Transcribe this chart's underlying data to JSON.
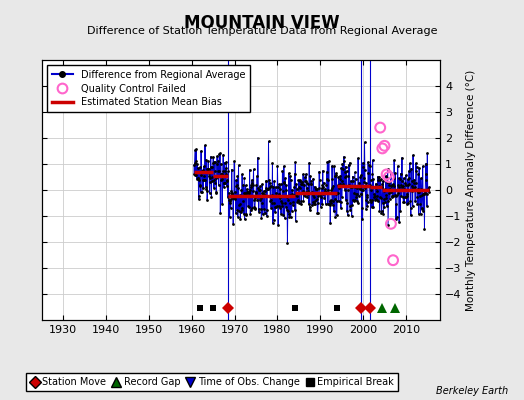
{
  "title": "MOUNTAIN VIEW",
  "subtitle": "Difference of Station Temperature Data from Regional Average",
  "ylabel": "Monthly Temperature Anomaly Difference (°C)",
  "xlabel_credit": "Berkeley Earth",
  "xlim": [
    1925,
    2018
  ],
  "ylim": [
    -5,
    5
  ],
  "yticks": [
    -4,
    -3,
    -2,
    -1,
    0,
    1,
    2,
    3,
    4
  ],
  "xticks": [
    1930,
    1940,
    1950,
    1960,
    1970,
    1980,
    1990,
    2000,
    2010
  ],
  "bg_color": "#e8e8e8",
  "plot_bg_color": "#ffffff",
  "grid_color": "#cccccc",
  "data_start_year": 1960.5,
  "data_end_year": 2015.5,
  "seed": 42,
  "station_moves": [
    1968.5,
    1999.5,
    2001.5
  ],
  "empirical_breaks": [
    1962.0,
    1965.0,
    1984.0,
    1994.0
  ],
  "record_gaps": [
    2004.5,
    2007.5
  ],
  "time_obs_changes": [],
  "bias_segments": [
    {
      "x_start": 1960.5,
      "x_end": 1965.0,
      "bias": 0.7
    },
    {
      "x_start": 1965.0,
      "x_end": 1968.5,
      "bias": 0.55
    },
    {
      "x_start": 1968.5,
      "x_end": 1984.0,
      "bias": -0.25
    },
    {
      "x_start": 1984.0,
      "x_end": 1994.0,
      "bias": -0.1
    },
    {
      "x_start": 1994.0,
      "x_end": 1999.5,
      "bias": 0.15
    },
    {
      "x_start": 1999.5,
      "x_end": 2001.5,
      "bias": 0.15
    },
    {
      "x_start": 2001.5,
      "x_end": 2004.5,
      "bias": 0.1
    },
    {
      "x_start": 2004.5,
      "x_end": 2007.5,
      "bias": 0.0
    },
    {
      "x_start": 2007.5,
      "x_end": 2015.5,
      "bias": 0.0
    }
  ],
  "qc_failed_years": [
    2004.0,
    2004.5,
    2005.0,
    2005.5,
    2006.0,
    2006.5,
    2007.0
  ],
  "qc_failed_values": [
    2.4,
    1.6,
    1.7,
    0.6,
    0.5,
    -1.3,
    -2.7
  ],
  "line_color": "#0000cc",
  "dot_color": "#000000",
  "bias_color": "#cc0000",
  "qc_color": "#ff66cc",
  "station_move_color": "#cc0000",
  "record_gap_color": "#006600",
  "time_obs_color": "#0000cc",
  "empirical_break_color": "#000000",
  "marker_y": -4.55
}
